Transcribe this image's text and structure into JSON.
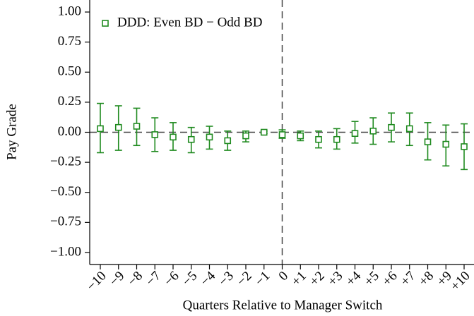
{
  "chart_data": {
    "type": "errorbar",
    "x_label": "Quarters Relative to Manager Switch",
    "y_label": "Pay Grade",
    "categories": [
      "−10",
      "−9",
      "−8",
      "−7",
      "−6",
      "−5",
      "−4",
      "−3",
      "−2",
      "−1",
      "0",
      "+1",
      "+2",
      "+3",
      "+4",
      "+5",
      "+6",
      "+7",
      "+8",
      "+9",
      "+10"
    ],
    "series": [
      {
        "name": "DDD: Even BD − Odd BD",
        "color": "#1f8a1f",
        "values": [
          0.03,
          0.04,
          0.05,
          -0.02,
          -0.04,
          -0.06,
          -0.04,
          -0.07,
          -0.03,
          0.0,
          -0.02,
          -0.03,
          -0.06,
          -0.06,
          -0.01,
          0.01,
          0.04,
          0.03,
          -0.08,
          -0.1,
          -0.12
        ],
        "ci_low": [
          -0.17,
          -0.15,
          -0.11,
          -0.16,
          -0.15,
          -0.17,
          -0.14,
          -0.15,
          -0.08,
          -0.01,
          -0.05,
          -0.07,
          -0.13,
          -0.14,
          -0.09,
          -0.1,
          -0.08,
          -0.11,
          -0.23,
          -0.28,
          -0.31
        ],
        "ci_high": [
          0.24,
          0.22,
          0.2,
          0.12,
          0.08,
          0.04,
          0.05,
          0.01,
          0.01,
          0.01,
          0.02,
          0.01,
          0.01,
          0.03,
          0.09,
          0.12,
          0.16,
          0.16,
          0.08,
          0.06,
          0.07
        ]
      }
    ],
    "ylim": [
      -1.1,
      1.1
    ],
    "yticks": [
      {
        "value": -1,
        "label": "−1.00"
      },
      {
        "value": -0.75,
        "label": "−0.75"
      },
      {
        "value": -0.5,
        "label": "−0.50"
      },
      {
        "value": -0.25,
        "label": "−0.25"
      },
      {
        "value": 0,
        "label": "0.00"
      },
      {
        "value": 0.25,
        "label": "0.25"
      },
      {
        "value": 0.5,
        "label": "0.50"
      },
      {
        "value": 0.75,
        "label": "0.75"
      },
      {
        "value": 1,
        "label": "1.00"
      }
    ],
    "legend": "upper left"
  }
}
